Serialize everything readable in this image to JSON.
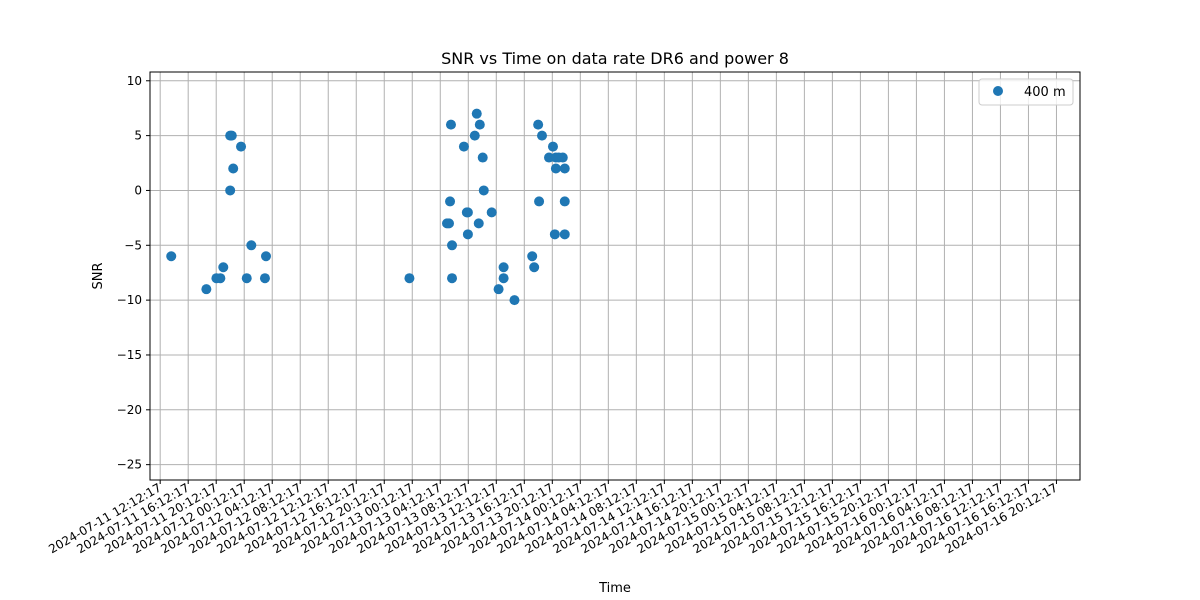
{
  "chart_data": {
    "type": "scatter",
    "title": "SNR vs Time on data rate DR6 and power 8",
    "xlabel": "Time",
    "ylabel": "SNR",
    "ylim": [
      -26.4,
      10.8
    ],
    "xlim": [
      "2024-07-11 10:45",
      "2024-07-16 23:34"
    ],
    "grid": true,
    "legend_position": "top-right",
    "marker_color": "#1f77b4",
    "x_ticks": [
      "2024-07-11 12:12:17",
      "2024-07-11 16:12:17",
      "2024-07-11 20:12:17",
      "2024-07-12 00:12:17",
      "2024-07-12 04:12:17",
      "2024-07-12 08:12:17",
      "2024-07-12 12:12:17",
      "2024-07-12 16:12:17",
      "2024-07-12 20:12:17",
      "2024-07-13 00:12:17",
      "2024-07-13 04:12:17",
      "2024-07-13 08:12:17",
      "2024-07-13 12:12:17",
      "2024-07-13 16:12:17",
      "2024-07-13 20:12:17",
      "2024-07-14 00:12:17",
      "2024-07-14 04:12:17",
      "2024-07-14 08:12:17",
      "2024-07-14 12:12:17",
      "2024-07-14 16:12:17",
      "2024-07-14 20:12:17",
      "2024-07-15 00:12:17",
      "2024-07-15 04:12:17",
      "2024-07-15 08:12:17",
      "2024-07-15 12:12:17",
      "2024-07-15 16:12:17",
      "2024-07-15 20:12:17",
      "2024-07-16 00:12:17",
      "2024-07-16 04:12:17",
      "2024-07-16 08:12:17",
      "2024-07-16 12:12:17",
      "2024-07-16 16:12:17",
      "2024-07-16 20:12:17"
    ],
    "y_ticks": [
      -25,
      -20,
      -15,
      -10,
      -5,
      0,
      5,
      10
    ],
    "y_tick_labels": [
      "−25",
      "−20",
      "−15",
      "−10",
      "−5",
      "0",
      "5",
      "10"
    ],
    "series": [
      {
        "name": "400 m",
        "points": [
          {
            "x": "2024-07-11 13:47",
            "y": -6
          },
          {
            "x": "2024-07-11 18:48",
            "y": -9
          },
          {
            "x": "2024-07-11 20:14",
            "y": -8
          },
          {
            "x": "2024-07-11 20:48",
            "y": -8
          },
          {
            "x": "2024-07-11 21:13",
            "y": -7
          },
          {
            "x": "2024-07-11 22:12",
            "y": 0
          },
          {
            "x": "2024-07-11 22:12",
            "y": 5
          },
          {
            "x": "2024-07-11 22:26",
            "y": 5
          },
          {
            "x": "2024-07-11 22:38",
            "y": 2
          },
          {
            "x": "2024-07-11 23:45",
            "y": 4
          },
          {
            "x": "2024-07-12 00:34",
            "y": -8
          },
          {
            "x": "2024-07-12 01:13",
            "y": -5
          },
          {
            "x": "2024-07-12 03:10",
            "y": -8
          },
          {
            "x": "2024-07-12 03:19",
            "y": -6
          },
          {
            "x": "2024-07-12 23:48",
            "y": -8
          },
          {
            "x": "2024-07-13 05:10",
            "y": -3
          },
          {
            "x": "2024-07-13 05:27",
            "y": -3
          },
          {
            "x": "2024-07-13 05:36",
            "y": -1
          },
          {
            "x": "2024-07-13 05:44",
            "y": 6
          },
          {
            "x": "2024-07-13 05:53",
            "y": -8
          },
          {
            "x": "2024-07-13 05:53",
            "y": -5
          },
          {
            "x": "2024-07-13 07:35",
            "y": 4
          },
          {
            "x": "2024-07-13 08:00",
            "y": -2
          },
          {
            "x": "2024-07-13 08:09",
            "y": -2
          },
          {
            "x": "2024-07-13 08:09",
            "y": -4
          },
          {
            "x": "2024-07-13 09:08",
            "y": 5
          },
          {
            "x": "2024-07-13 09:25",
            "y": 7
          },
          {
            "x": "2024-07-13 09:42",
            "y": -3
          },
          {
            "x": "2024-07-13 09:51",
            "y": 6
          },
          {
            "x": "2024-07-13 10:16",
            "y": 3
          },
          {
            "x": "2024-07-13 10:25",
            "y": 0
          },
          {
            "x": "2024-07-13 11:33",
            "y": -2
          },
          {
            "x": "2024-07-13 12:32",
            "y": -9
          },
          {
            "x": "2024-07-13 13:15",
            "y": -7
          },
          {
            "x": "2024-07-13 13:15",
            "y": -8
          },
          {
            "x": "2024-07-13 14:48",
            "y": -10
          },
          {
            "x": "2024-07-13 17:20",
            "y": -6
          },
          {
            "x": "2024-07-13 17:37",
            "y": -7
          },
          {
            "x": "2024-07-13 18:11",
            "y": 6
          },
          {
            "x": "2024-07-13 18:19",
            "y": -1
          },
          {
            "x": "2024-07-13 18:44",
            "y": 5
          },
          {
            "x": "2024-07-13 19:44",
            "y": 3
          },
          {
            "x": "2024-07-13 20:18",
            "y": 4
          },
          {
            "x": "2024-07-13 20:34",
            "y": -4
          },
          {
            "x": "2024-07-13 20:43",
            "y": 3
          },
          {
            "x": "2024-07-13 20:43",
            "y": 2
          },
          {
            "x": "2024-07-13 21:08",
            "y": 3
          },
          {
            "x": "2024-07-13 21:42",
            "y": 3
          },
          {
            "x": "2024-07-13 21:59",
            "y": -1
          },
          {
            "x": "2024-07-13 21:59",
            "y": 2
          },
          {
            "x": "2024-07-13 21:59",
            "y": -4
          }
        ]
      }
    ]
  }
}
